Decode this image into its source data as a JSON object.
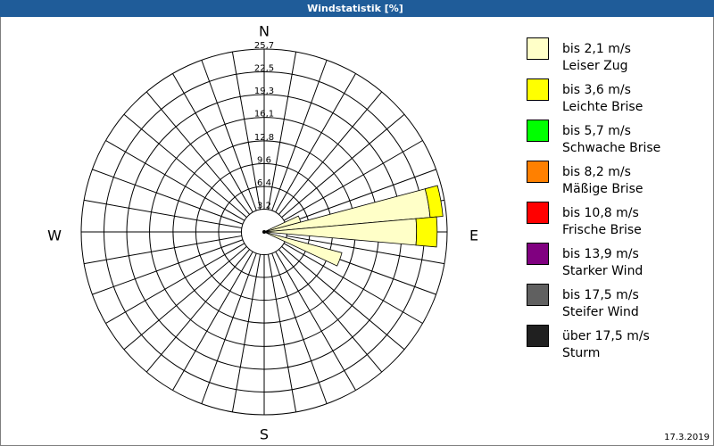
{
  "chart_data": {
    "type": "windrose",
    "title": "Windstatistik [%]",
    "compass": [
      "N",
      "E",
      "S",
      "W"
    ],
    "sectors": [
      70,
      80,
      90,
      110
    ],
    "sector_width": 10,
    "ylim": [
      0,
      25.7
    ],
    "yticks": [
      {
        "value": 3.2,
        "label": "3,2"
      },
      {
        "value": 6.4,
        "label": "6,4"
      },
      {
        "value": 9.6,
        "label": "9,6"
      },
      {
        "value": 12.8,
        "label": "12,8"
      },
      {
        "value": 16.1,
        "label": "16,1"
      },
      {
        "value": 19.3,
        "label": "19,3"
      },
      {
        "value": 22.5,
        "label": "22,5"
      },
      {
        "value": 25.7,
        "label": "25,7"
      }
    ],
    "series": [
      {
        "name": "bis 2,1 m/s",
        "label": "Leiser Zug",
        "color": "#ffffc8",
        "values": [
          5.3,
          23.4,
          21.4,
          11.3
        ]
      },
      {
        "name": "bis 3,6 m/s",
        "label": "Leichte Brise",
        "color": "#ffff00",
        "values": [
          0,
          1.8,
          2.9,
          0
        ]
      },
      {
        "name": "bis 5,7 m/s",
        "label": "Schwache Brise",
        "color": "#00ff00",
        "values": [
          0,
          0,
          0,
          0
        ]
      },
      {
        "name": "bis 8,2 m/s",
        "label": "Mäßige Brise",
        "color": "#ff8000",
        "values": [
          0,
          0,
          0,
          0
        ]
      },
      {
        "name": "bis 10,8 m/s",
        "label": "Frische Brise",
        "color": "#ff0000",
        "values": [
          0,
          0,
          0,
          0
        ]
      },
      {
        "name": "bis 13,9 m/s",
        "label": "Starker Wind",
        "color": "#800080",
        "values": [
          0,
          0,
          0,
          0
        ]
      },
      {
        "name": "bis 17,5 m/s",
        "label": "Steifer Wind",
        "color": "#606060",
        "values": [
          0,
          0,
          0,
          0
        ]
      },
      {
        "name": "über 17,5 m/s",
        "label": "Sturm",
        "color": "#202020",
        "values": [
          0,
          0,
          0,
          0
        ]
      }
    ],
    "date": "17.3.2019"
  }
}
